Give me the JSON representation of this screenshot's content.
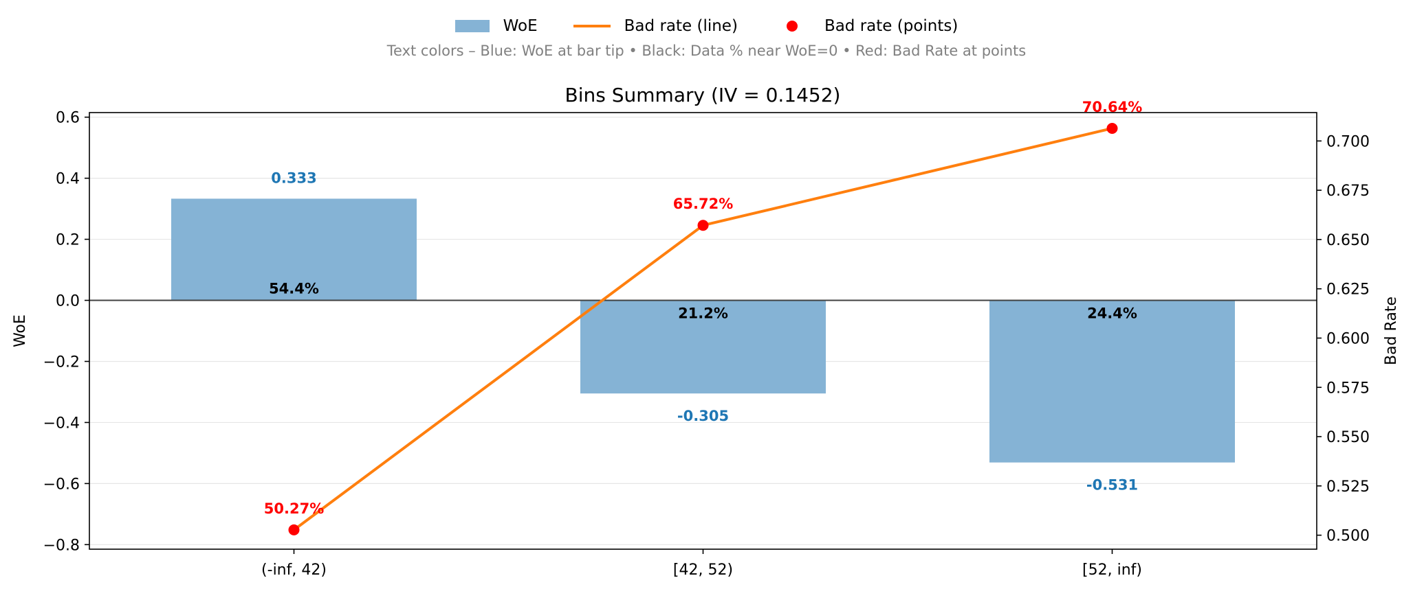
{
  "legend": {
    "woe_label": "WoE",
    "line_label": "Bad rate (line)",
    "points_label": "Bad rate (points)",
    "placement": "top-center"
  },
  "subtitle": "Text colors – Blue: WoE at bar tip • Black: Data % near WoE=0 • Red: Bad Rate at points",
  "colors": {
    "bar": "#85b3d5",
    "line": "#ff7f0e",
    "points": "#ff0000",
    "woe_text": "#1f77b4",
    "pct_text": "#000000",
    "br_text": "#ff0000"
  },
  "chart_data": {
    "type": "bar",
    "title": "Bins Summary (IV = 0.1452)",
    "categories": [
      "(-inf, 42)",
      "[42, 52)",
      "[52, inf)"
    ],
    "series": [
      {
        "name": "WoE",
        "type": "bar",
        "axis": "left",
        "values": [
          0.333,
          -0.305,
          -0.531
        ]
      },
      {
        "name": "Bad rate (line)",
        "type": "line",
        "axis": "right",
        "values": [
          0.5027,
          0.6572,
          0.7064
        ]
      },
      {
        "name": "Bad rate (points)",
        "type": "scatter",
        "axis": "right",
        "values": [
          0.5027,
          0.6572,
          0.7064
        ]
      }
    ],
    "woe_labels": [
      "0.333",
      "-0.305",
      "-0.531"
    ],
    "pct_labels": [
      "54.4%",
      "21.2%",
      "24.4%"
    ],
    "bad_rate_labels": [
      "50.27%",
      "65.72%",
      "70.64%"
    ],
    "ylabel": "WoE",
    "ylabel_right": "Bad Rate",
    "ylim": [
      -0.815,
      0.615
    ],
    "ylim_right": [
      0.4929,
      0.7144
    ],
    "yticks": [
      -0.8,
      -0.6,
      -0.4,
      -0.2,
      0.0,
      0.2,
      0.4,
      0.6
    ],
    "ytick_labels": [
      "−0.8",
      "−0.6",
      "−0.4",
      "−0.2",
      "0.0",
      "0.2",
      "0.4",
      "0.6"
    ],
    "yticks_right": [
      0.5,
      0.525,
      0.55,
      0.575,
      0.6,
      0.625,
      0.65,
      0.675,
      0.7
    ],
    "ytick_labels_right": [
      "0.500",
      "0.525",
      "0.550",
      "0.575",
      "0.600",
      "0.625",
      "0.650",
      "0.675",
      "0.700"
    ],
    "grid": "horizontal",
    "zero_line": true
  }
}
